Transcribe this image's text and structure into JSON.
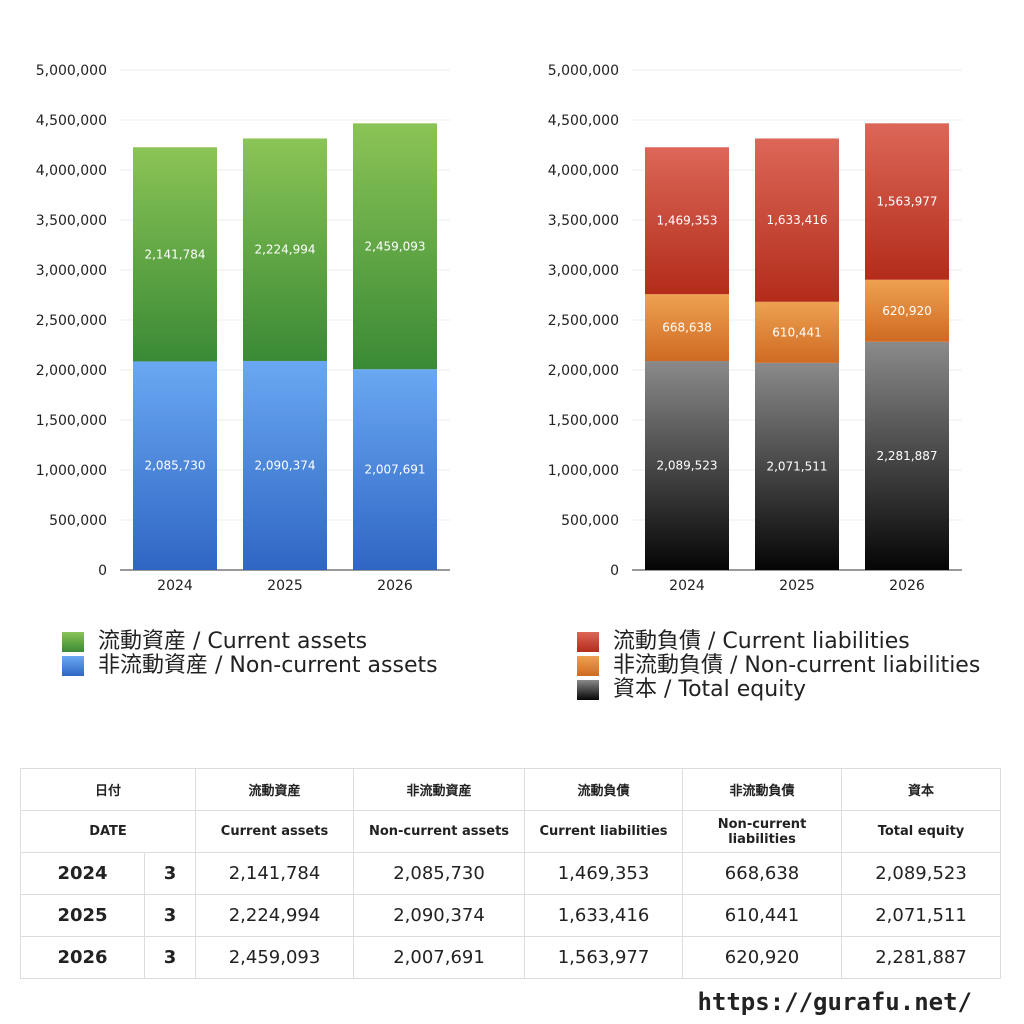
{
  "colors": {
    "current_assets": [
      "#8bc456",
      "#3a8a35"
    ],
    "non_current_assets": [
      "#6aa8f2",
      "#2f66c4"
    ],
    "current_liabilities": [
      "#dc6758",
      "#b32c1a"
    ],
    "non_current_liabilities": [
      "#eea151",
      "#cf6a22"
    ],
    "total_equity": [
      "#8a8a8a",
      "#050505"
    ]
  },
  "chart_data": [
    {
      "type": "bar",
      "stacked": true,
      "categories": [
        "2024",
        "2025",
        "2026"
      ],
      "y_ticks": [
        "0",
        "500,000",
        "1,000,000",
        "1,500,000",
        "2,000,000",
        "2,500,000",
        "3,000,000",
        "3,500,000",
        "4,000,000",
        "4,500,000",
        "5,000,000"
      ],
      "ylim": [
        0,
        5000000
      ],
      "grid": true,
      "series": [
        {
          "name": "非流動資産 / Non-current assets",
          "key": "non_current_assets",
          "values": [
            2085730,
            2090374,
            2007691
          ],
          "labels": [
            "2,085,730",
            "2,090,374",
            "2,007,691"
          ]
        },
        {
          "name": "流動資産 / Current assets",
          "key": "current_assets",
          "values": [
            2141784,
            2224994,
            2459093
          ],
          "labels": [
            "2,141,784",
            "2,224,994",
            "2,459,093"
          ]
        }
      ]
    },
    {
      "type": "bar",
      "stacked": true,
      "categories": [
        "2024",
        "2025",
        "2026"
      ],
      "y_ticks": [
        "0",
        "500,000",
        "1,000,000",
        "1,500,000",
        "2,000,000",
        "2,500,000",
        "3,000,000",
        "3,500,000",
        "4,000,000",
        "4,500,000",
        "5,000,000"
      ],
      "ylim": [
        0,
        5000000
      ],
      "grid": true,
      "series": [
        {
          "name": "資本 / Total equity",
          "key": "total_equity",
          "values": [
            2089523,
            2071511,
            2281887
          ],
          "labels": [
            "2,089,523",
            "2,071,511",
            "2,281,887"
          ]
        },
        {
          "name": "非流動負債 / Non-current liabilities",
          "key": "non_current_liabilities",
          "values": [
            668638,
            610441,
            620920
          ],
          "labels": [
            "668,638",
            "610,441",
            "620,920"
          ]
        },
        {
          "name": "流動負債 / Current liabilities",
          "key": "current_liabilities",
          "values": [
            1469353,
            1633416,
            1563977
          ],
          "labels": [
            "1,469,353",
            "1,633,416",
            "1,563,977"
          ]
        }
      ]
    }
  ],
  "legend_left": [
    {
      "label": "流動資産 / Current assets",
      "key": "current_assets"
    },
    {
      "label": "非流動資産 / Non-current assets",
      "key": "non_current_assets"
    }
  ],
  "legend_right": [
    {
      "label": "流動負債 / Current liabilities",
      "key": "current_liabilities"
    },
    {
      "label": "非流動負債 / Non-current liabilities",
      "key": "non_current_liabilities"
    },
    {
      "label": "資本 / Total equity",
      "key": "total_equity"
    }
  ],
  "table": {
    "header_jp": [
      "日付",
      "流動資産",
      "非流動資産",
      "流動負債",
      "非流動負債",
      "資本"
    ],
    "header_en": [
      "DATE",
      "Current assets",
      "Non-current assets",
      "Current liabilities",
      "Non-current liabilities",
      "Total equity"
    ],
    "rows": [
      [
        "2024",
        "3",
        "2,141,784",
        "2,085,730",
        "1,469,353",
        "668,638",
        "2,089,523"
      ],
      [
        "2025",
        "3",
        "2,224,994",
        "2,090,374",
        "1,633,416",
        "610,441",
        "2,071,511"
      ],
      [
        "2026",
        "3",
        "2,459,093",
        "2,007,691",
        "1,563,977",
        "620,920",
        "2,281,887"
      ]
    ]
  },
  "site_url": "https://gurafu.net/"
}
